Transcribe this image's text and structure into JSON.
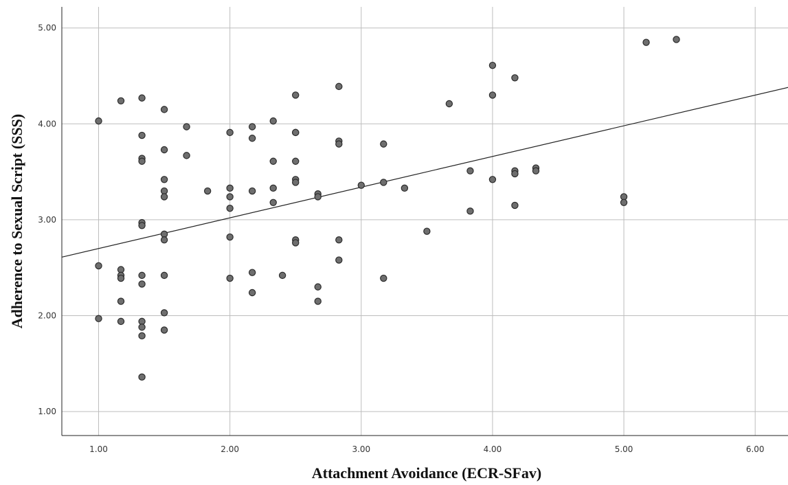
{
  "chart_data": {
    "type": "scatter",
    "xlabel": "Attachment Avoidance (ECR-SFav)",
    "ylabel": "Adherence to Sexual Script (SSS)",
    "xlim": [
      0.72,
      6.25
    ],
    "ylim": [
      0.75,
      5.22
    ],
    "x_ticks": [
      "1.00",
      "2.00",
      "3.00",
      "4.00",
      "5.00",
      "6.00"
    ],
    "y_ticks": [
      "1.00",
      "2.00",
      "3.00",
      "4.00",
      "5.00"
    ],
    "grid": true,
    "point_color": "#6e6e6e",
    "point_edge_color": "#2b2b2b",
    "fit_line": {
      "type": "linear",
      "intercept": 2.38,
      "slope": 0.32
    },
    "points": [
      {
        "x": 1.0,
        "y": 4.03
      },
      {
        "x": 1.0,
        "y": 2.52
      },
      {
        "x": 1.0,
        "y": 1.97
      },
      {
        "x": 1.17,
        "y": 4.24
      },
      {
        "x": 1.17,
        "y": 2.48
      },
      {
        "x": 1.17,
        "y": 2.42
      },
      {
        "x": 1.17,
        "y": 2.39
      },
      {
        "x": 1.17,
        "y": 2.15
      },
      {
        "x": 1.17,
        "y": 1.94
      },
      {
        "x": 1.33,
        "y": 4.27
      },
      {
        "x": 1.33,
        "y": 3.88
      },
      {
        "x": 1.33,
        "y": 3.64
      },
      {
        "x": 1.33,
        "y": 3.61
      },
      {
        "x": 1.33,
        "y": 2.97
      },
      {
        "x": 1.33,
        "y": 2.94
      },
      {
        "x": 1.33,
        "y": 2.42
      },
      {
        "x": 1.33,
        "y": 2.33
      },
      {
        "x": 1.33,
        "y": 1.94
      },
      {
        "x": 1.33,
        "y": 1.88
      },
      {
        "x": 1.33,
        "y": 1.79
      },
      {
        "x": 1.33,
        "y": 1.36
      },
      {
        "x": 1.5,
        "y": 4.15
      },
      {
        "x": 1.5,
        "y": 3.73
      },
      {
        "x": 1.5,
        "y": 3.42
      },
      {
        "x": 1.5,
        "y": 3.3
      },
      {
        "x": 1.5,
        "y": 3.24
      },
      {
        "x": 1.5,
        "y": 2.85
      },
      {
        "x": 1.5,
        "y": 2.79
      },
      {
        "x": 1.5,
        "y": 2.42
      },
      {
        "x": 1.5,
        "y": 2.03
      },
      {
        "x": 1.5,
        "y": 1.85
      },
      {
        "x": 1.67,
        "y": 3.97
      },
      {
        "x": 1.67,
        "y": 3.67
      },
      {
        "x": 1.83,
        "y": 3.3
      },
      {
        "x": 2.0,
        "y": 3.91
      },
      {
        "x": 2.0,
        "y": 3.33
      },
      {
        "x": 2.0,
        "y": 3.24
      },
      {
        "x": 2.0,
        "y": 3.12
      },
      {
        "x": 2.0,
        "y": 2.82
      },
      {
        "x": 2.0,
        "y": 2.39
      },
      {
        "x": 2.17,
        "y": 3.97
      },
      {
        "x": 2.17,
        "y": 3.85
      },
      {
        "x": 2.17,
        "y": 3.3
      },
      {
        "x": 2.17,
        "y": 2.45
      },
      {
        "x": 2.17,
        "y": 2.24
      },
      {
        "x": 2.33,
        "y": 4.03
      },
      {
        "x": 2.33,
        "y": 3.61
      },
      {
        "x": 2.33,
        "y": 3.33
      },
      {
        "x": 2.33,
        "y": 3.18
      },
      {
        "x": 2.4,
        "y": 2.42
      },
      {
        "x": 2.5,
        "y": 4.3
      },
      {
        "x": 2.5,
        "y": 3.91
      },
      {
        "x": 2.5,
        "y": 3.91
      },
      {
        "x": 2.5,
        "y": 3.61
      },
      {
        "x": 2.5,
        "y": 3.42
      },
      {
        "x": 2.5,
        "y": 3.39
      },
      {
        "x": 2.5,
        "y": 2.79
      },
      {
        "x": 2.5,
        "y": 2.76
      },
      {
        "x": 2.67,
        "y": 3.27
      },
      {
        "x": 2.67,
        "y": 3.24
      },
      {
        "x": 2.67,
        "y": 2.3
      },
      {
        "x": 2.67,
        "y": 2.15
      },
      {
        "x": 2.83,
        "y": 4.39
      },
      {
        "x": 2.83,
        "y": 3.82
      },
      {
        "x": 2.83,
        "y": 3.79
      },
      {
        "x": 2.83,
        "y": 2.79
      },
      {
        "x": 2.83,
        "y": 2.58
      },
      {
        "x": 3.0,
        "y": 3.36
      },
      {
        "x": 3.17,
        "y": 3.79
      },
      {
        "x": 3.17,
        "y": 3.39
      },
      {
        "x": 3.17,
        "y": 2.39
      },
      {
        "x": 3.33,
        "y": 3.33
      },
      {
        "x": 3.5,
        "y": 2.88
      },
      {
        "x": 3.67,
        "y": 4.21
      },
      {
        "x": 3.83,
        "y": 3.51
      },
      {
        "x": 3.83,
        "y": 3.09
      },
      {
        "x": 4.0,
        "y": 4.61
      },
      {
        "x": 4.0,
        "y": 4.3
      },
      {
        "x": 4.0,
        "y": 3.42
      },
      {
        "x": 4.17,
        "y": 4.48
      },
      {
        "x": 4.17,
        "y": 3.51
      },
      {
        "x": 4.17,
        "y": 3.48
      },
      {
        "x": 4.17,
        "y": 3.15
      },
      {
        "x": 4.33,
        "y": 3.54
      },
      {
        "x": 4.33,
        "y": 3.51
      },
      {
        "x": 5.0,
        "y": 3.24
      },
      {
        "x": 5.0,
        "y": 3.18
      },
      {
        "x": 5.17,
        "y": 4.85
      },
      {
        "x": 5.4,
        "y": 4.88
      }
    ]
  }
}
